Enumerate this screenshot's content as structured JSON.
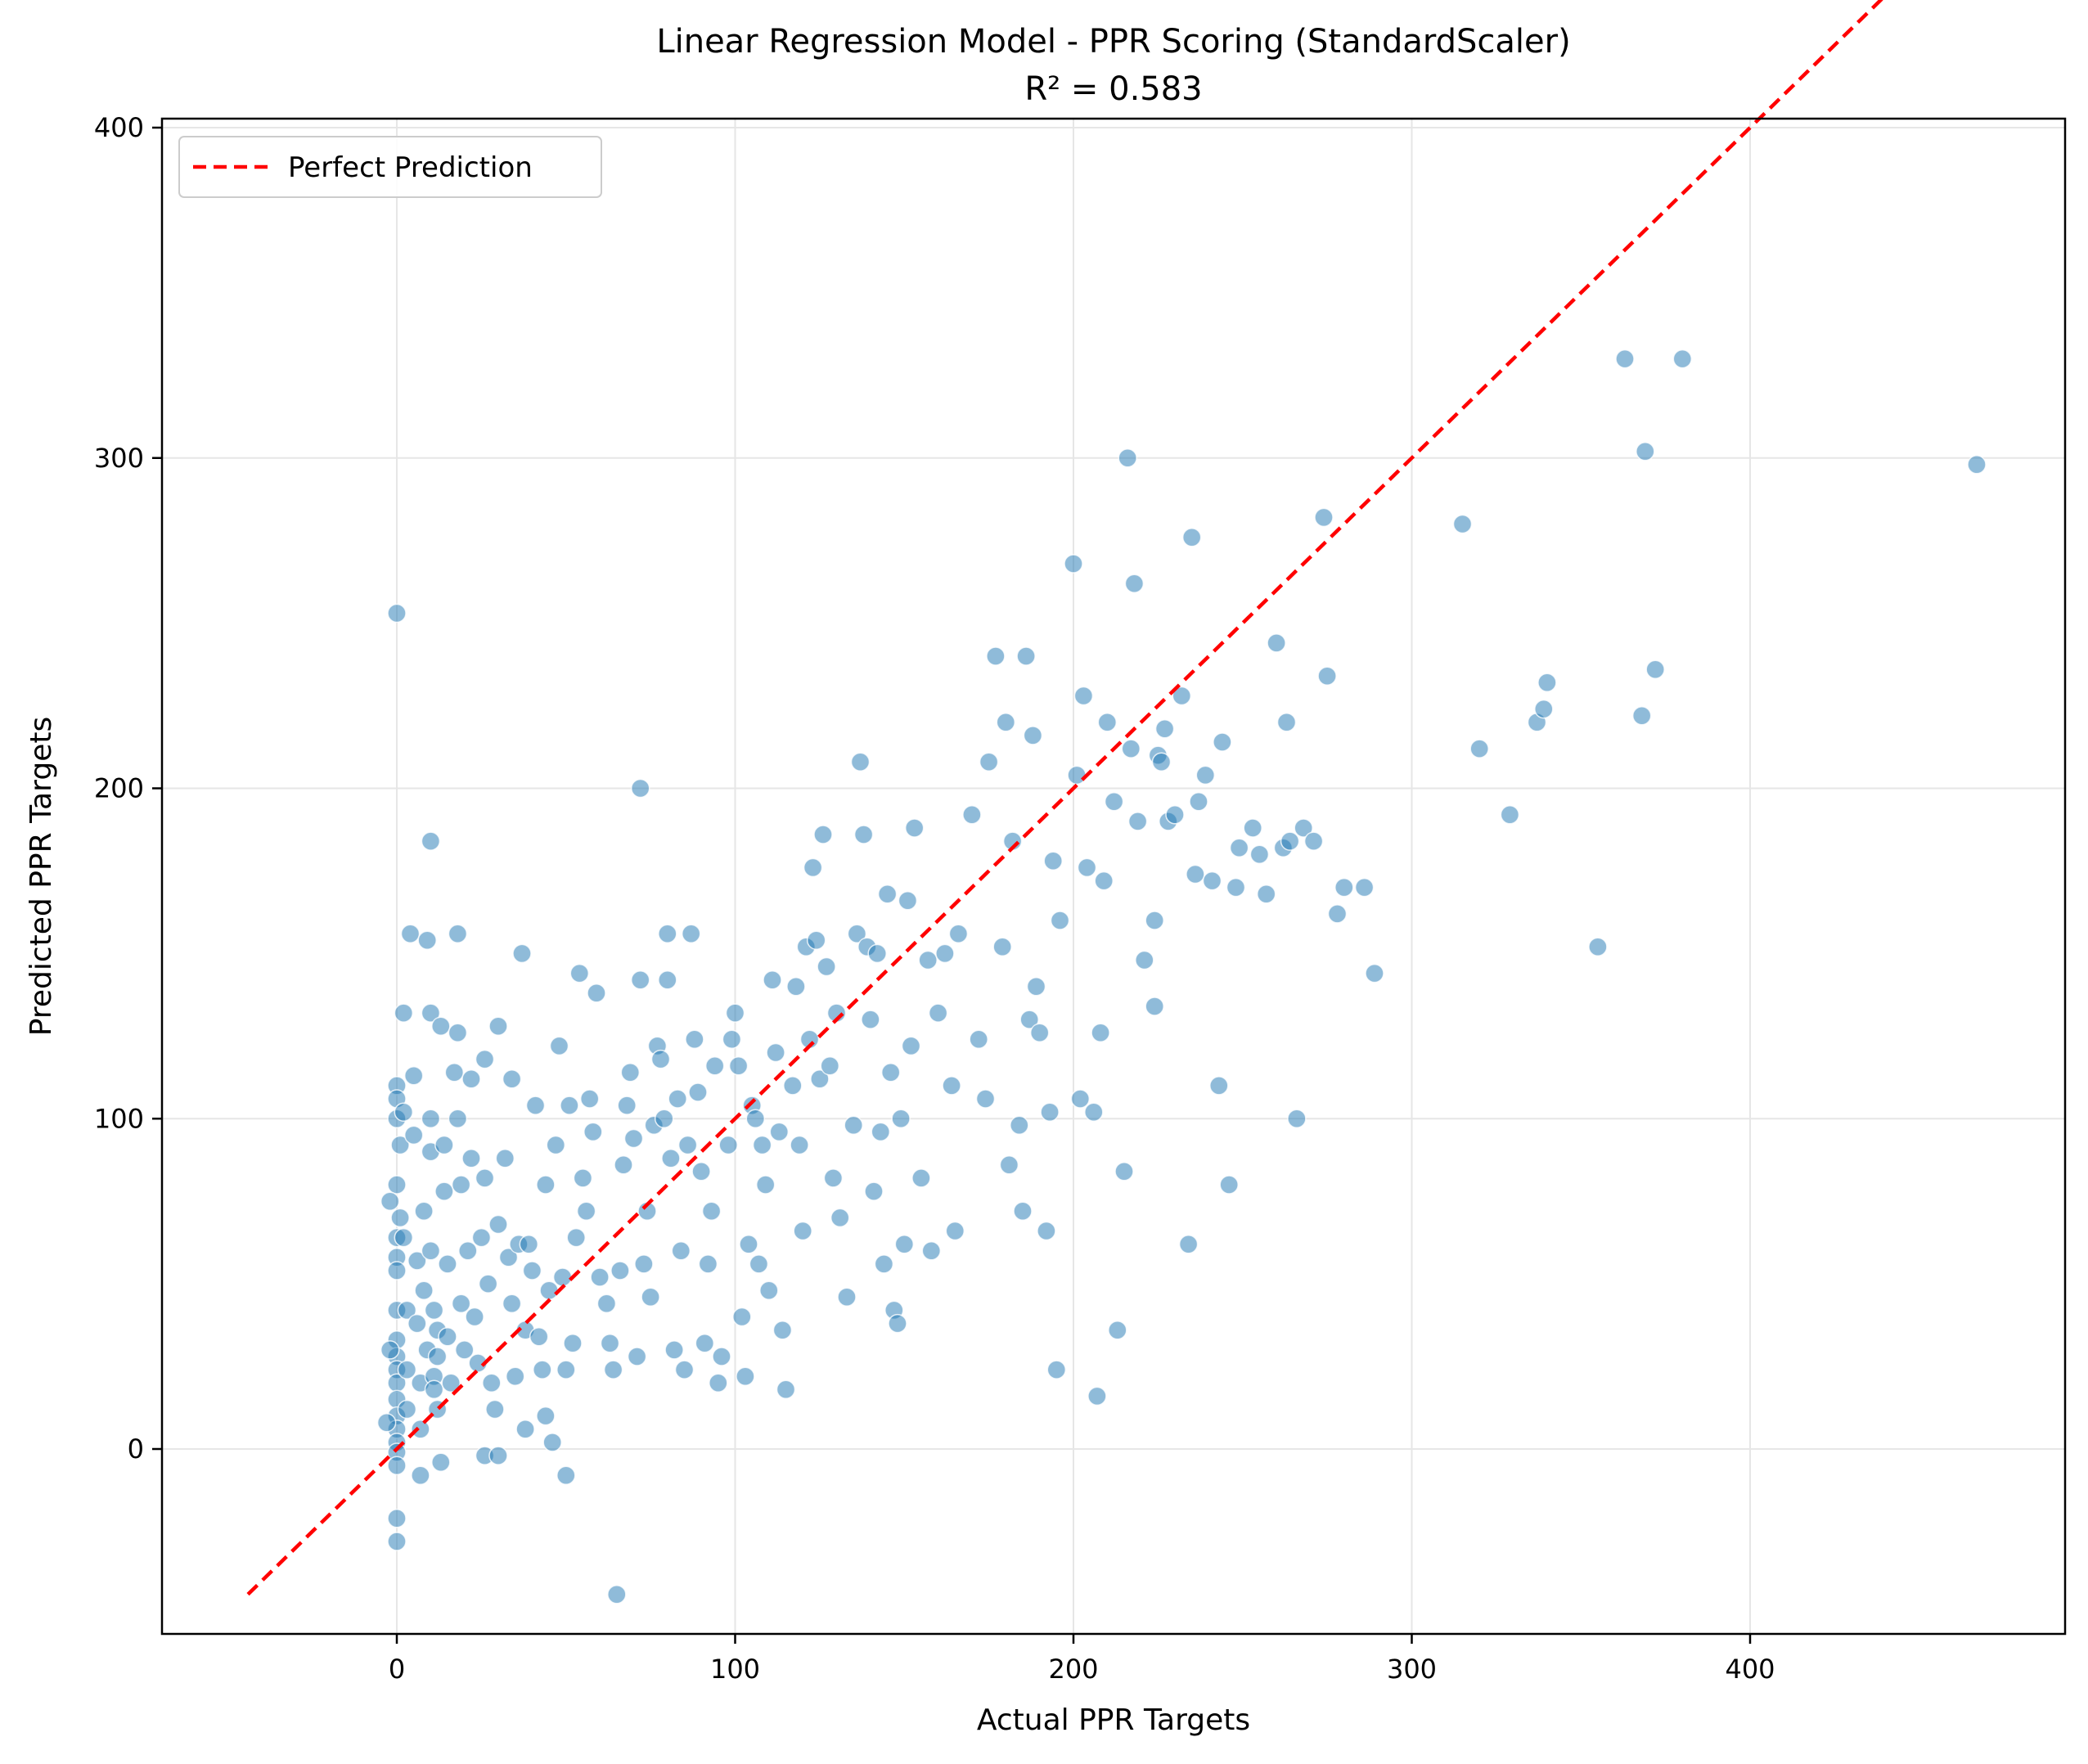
{
  "chart_data": {
    "type": "scatter",
    "title": "Linear Regression Model - PPR Scoring (StandardScaler)",
    "subtitle": "R² = 0.583",
    "xlabel": "Actual PPR Targets",
    "ylabel": "Predicted PPR Targets",
    "xlim": [
      -70,
      490
    ],
    "ylim": [
      -70,
      490
    ],
    "x_ticks": [
      0,
      100,
      200,
      300,
      400
    ],
    "y_ticks": [
      0,
      100,
      200,
      300,
      400
    ],
    "x_tick_labels": [
      "0",
      "100",
      "200",
      "300",
      "400"
    ],
    "y_tick_labels": [
      "0",
      "100",
      "200",
      "300",
      "400"
    ],
    "grid": true,
    "legend_position": "top-left",
    "colors": {
      "points": "#1f77b4",
      "reference_line": "#ff0000",
      "grid": "#e6e6e6"
    },
    "reference_line": {
      "name": "Perfect Prediction",
      "x": [
        -44,
        467
      ],
      "y": [
        -44,
        467
      ]
    },
    "points": [
      [
        0,
        253
      ],
      [
        0,
        110
      ],
      [
        0,
        106
      ],
      [
        0,
        100
      ],
      [
        1,
        92
      ],
      [
        0,
        80
      ],
      [
        1,
        70
      ],
      [
        0,
        64
      ],
      [
        0,
        58
      ],
      [
        0,
        54
      ],
      [
        0,
        42
      ],
      [
        0,
        33
      ],
      [
        0,
        28
      ],
      [
        0,
        24
      ],
      [
        0,
        20
      ],
      [
        0,
        15
      ],
      [
        0,
        10
      ],
      [
        0,
        6
      ],
      [
        0,
        2
      ],
      [
        0,
        -1
      ],
      [
        0,
        -5
      ],
      [
        0,
        -21
      ],
      [
        0,
        -28
      ],
      [
        -2,
        30
      ],
      [
        -3,
        8
      ],
      [
        -2,
        75
      ],
      [
        2,
        132
      ],
      [
        2,
        102
      ],
      [
        2,
        64
      ],
      [
        3,
        42
      ],
      [
        3,
        24
      ],
      [
        3,
        12
      ],
      [
        4,
        156
      ],
      [
        5,
        113
      ],
      [
        5,
        95
      ],
      [
        6,
        57
      ],
      [
        6,
        38
      ],
      [
        7,
        20
      ],
      [
        7,
        6
      ],
      [
        7,
        -8
      ],
      [
        8,
        72
      ],
      [
        8,
        48
      ],
      [
        9,
        30
      ],
      [
        9,
        154
      ],
      [
        10,
        184
      ],
      [
        10,
        132
      ],
      [
        10,
        100
      ],
      [
        10,
        90
      ],
      [
        10,
        60
      ],
      [
        11,
        42
      ],
      [
        11,
        22
      ],
      [
        11,
        18
      ],
      [
        12,
        36
      ],
      [
        12,
        28
      ],
      [
        12,
        12
      ],
      [
        13,
        -4
      ],
      [
        13,
        128
      ],
      [
        14,
        92
      ],
      [
        14,
        78
      ],
      [
        15,
        56
      ],
      [
        15,
        34
      ],
      [
        16,
        20
      ],
      [
        17,
        114
      ],
      [
        18,
        126
      ],
      [
        18,
        156
      ],
      [
        18,
        100
      ],
      [
        19,
        80
      ],
      [
        19,
        44
      ],
      [
        20,
        30
      ],
      [
        21,
        60
      ],
      [
        22,
        112
      ],
      [
        22,
        88
      ],
      [
        23,
        40
      ],
      [
        24,
        26
      ],
      [
        25,
        64
      ],
      [
        26,
        -2
      ],
      [
        26,
        118
      ],
      [
        26,
        82
      ],
      [
        27,
        50
      ],
      [
        28,
        20
      ],
      [
        29,
        12
      ],
      [
        30,
        -2
      ],
      [
        30,
        128
      ],
      [
        30,
        68
      ],
      [
        32,
        88
      ],
      [
        33,
        58
      ],
      [
        34,
        44
      ],
      [
        34,
        112
      ],
      [
        35,
        22
      ],
      [
        36,
        62
      ],
      [
        37,
        150
      ],
      [
        38,
        36
      ],
      [
        38,
        6
      ],
      [
        39,
        62
      ],
      [
        40,
        54
      ],
      [
        41,
        104
      ],
      [
        42,
        34
      ],
      [
        43,
        24
      ],
      [
        44,
        80
      ],
      [
        44,
        10
      ],
      [
        45,
        48
      ],
      [
        46,
        2
      ],
      [
        47,
        92
      ],
      [
        48,
        122
      ],
      [
        49,
        52
      ],
      [
        50,
        24
      ],
      [
        50,
        -8
      ],
      [
        51,
        104
      ],
      [
        52,
        32
      ],
      [
        53,
        64
      ],
      [
        54,
        144
      ],
      [
        55,
        82
      ],
      [
        56,
        72
      ],
      [
        57,
        106
      ],
      [
        58,
        96
      ],
      [
        59,
        138
      ],
      [
        60,
        52
      ],
      [
        62,
        44
      ],
      [
        63,
        32
      ],
      [
        64,
        24
      ],
      [
        65,
        -44
      ],
      [
        66,
        54
      ],
      [
        67,
        86
      ],
      [
        68,
        104
      ],
      [
        69,
        114
      ],
      [
        70,
        94
      ],
      [
        71,
        28
      ],
      [
        72,
        200
      ],
      [
        72,
        142
      ],
      [
        73,
        56
      ],
      [
        74,
        72
      ],
      [
        75,
        46
      ],
      [
        76,
        98
      ],
      [
        77,
        122
      ],
      [
        78,
        118
      ],
      [
        79,
        100
      ],
      [
        80,
        156
      ],
      [
        80,
        142
      ],
      [
        81,
        88
      ],
      [
        82,
        30
      ],
      [
        83,
        106
      ],
      [
        84,
        60
      ],
      [
        85,
        24
      ],
      [
        86,
        92
      ],
      [
        87,
        156
      ],
      [
        88,
        124
      ],
      [
        89,
        108
      ],
      [
        90,
        84
      ],
      [
        91,
        32
      ],
      [
        92,
        56
      ],
      [
        93,
        72
      ],
      [
        94,
        116
      ],
      [
        95,
        20
      ],
      [
        96,
        28
      ],
      [
        98,
        92
      ],
      [
        99,
        124
      ],
      [
        100,
        132
      ],
      [
        101,
        116
      ],
      [
        102,
        40
      ],
      [
        103,
        22
      ],
      [
        104,
        62
      ],
      [
        105,
        104
      ],
      [
        106,
        100
      ],
      [
        107,
        56
      ],
      [
        108,
        92
      ],
      [
        109,
        80
      ],
      [
        110,
        48
      ],
      [
        111,
        142
      ],
      [
        112,
        120
      ],
      [
        113,
        96
      ],
      [
        114,
        36
      ],
      [
        115,
        18
      ],
      [
        117,
        110
      ],
      [
        118,
        140
      ],
      [
        119,
        92
      ],
      [
        120,
        66
      ],
      [
        121,
        152
      ],
      [
        122,
        124
      ],
      [
        123,
        176
      ],
      [
        124,
        154
      ],
      [
        125,
        112
      ],
      [
        126,
        186
      ],
      [
        127,
        146
      ],
      [
        128,
        116
      ],
      [
        129,
        82
      ],
      [
        130,
        132
      ],
      [
        131,
        70
      ],
      [
        133,
        46
      ],
      [
        135,
        98
      ],
      [
        136,
        156
      ],
      [
        137,
        208
      ],
      [
        138,
        186
      ],
      [
        139,
        152
      ],
      [
        140,
        130
      ],
      [
        141,
        78
      ],
      [
        142,
        150
      ],
      [
        143,
        96
      ],
      [
        144,
        56
      ],
      [
        145,
        168
      ],
      [
        146,
        114
      ],
      [
        147,
        42
      ],
      [
        148,
        38
      ],
      [
        149,
        100
      ],
      [
        150,
        62
      ],
      [
        151,
        166
      ],
      [
        152,
        122
      ],
      [
        153,
        188
      ],
      [
        155,
        82
      ],
      [
        157,
        148
      ],
      [
        158,
        60
      ],
      [
        160,
        132
      ],
      [
        162,
        150
      ],
      [
        164,
        110
      ],
      [
        165,
        66
      ],
      [
        166,
        156
      ],
      [
        170,
        192
      ],
      [
        172,
        124
      ],
      [
        174,
        106
      ],
      [
        175,
        208
      ],
      [
        177,
        240
      ],
      [
        179,
        152
      ],
      [
        180,
        220
      ],
      [
        181,
        86
      ],
      [
        182,
        184
      ],
      [
        184,
        98
      ],
      [
        185,
        72
      ],
      [
        186,
        240
      ],
      [
        187,
        130
      ],
      [
        188,
        216
      ],
      [
        189,
        140
      ],
      [
        190,
        126
      ],
      [
        192,
        66
      ],
      [
        193,
        102
      ],
      [
        194,
        178
      ],
      [
        195,
        24
      ],
      [
        196,
        160
      ],
      [
        200,
        268
      ],
      [
        201,
        204
      ],
      [
        202,
        106
      ],
      [
        203,
        228
      ],
      [
        204,
        176
      ],
      [
        206,
        102
      ],
      [
        207,
        16
      ],
      [
        208,
        126
      ],
      [
        209,
        172
      ],
      [
        210,
        220
      ],
      [
        212,
        196
      ],
      [
        213,
        36
      ],
      [
        215,
        84
      ],
      [
        216,
        300
      ],
      [
        217,
        212
      ],
      [
        218,
        262
      ],
      [
        219,
        190
      ],
      [
        221,
        148
      ],
      [
        224,
        160
      ],
      [
        224,
        134
      ],
      [
        225,
        210
      ],
      [
        226,
        208
      ],
      [
        227,
        218
      ],
      [
        228,
        190
      ],
      [
        230,
        192
      ],
      [
        232,
        228
      ],
      [
        234,
        62
      ],
      [
        235,
        276
      ],
      [
        236,
        174
      ],
      [
        237,
        196
      ],
      [
        239,
        204
      ],
      [
        241,
        172
      ],
      [
        243,
        110
      ],
      [
        244,
        214
      ],
      [
        246,
        80
      ],
      [
        248,
        170
      ],
      [
        249,
        182
      ],
      [
        253,
        188
      ],
      [
        255,
        180
      ],
      [
        257,
        168
      ],
      [
        260,
        244
      ],
      [
        262,
        182
      ],
      [
        263,
        220
      ],
      [
        264,
        184
      ],
      [
        266,
        100
      ],
      [
        268,
        188
      ],
      [
        271,
        184
      ],
      [
        274,
        282
      ],
      [
        275,
        234
      ],
      [
        278,
        162
      ],
      [
        280,
        170
      ],
      [
        286,
        170
      ],
      [
        289,
        144
      ],
      [
        315,
        280
      ],
      [
        320,
        212
      ],
      [
        329,
        192
      ],
      [
        337,
        220
      ],
      [
        339,
        224
      ],
      [
        340,
        232
      ],
      [
        355,
        152
      ],
      [
        363,
        330
      ],
      [
        368,
        222
      ],
      [
        369,
        302
      ],
      [
        372,
        236
      ],
      [
        380,
        330
      ],
      [
        467,
        298
      ]
    ]
  }
}
